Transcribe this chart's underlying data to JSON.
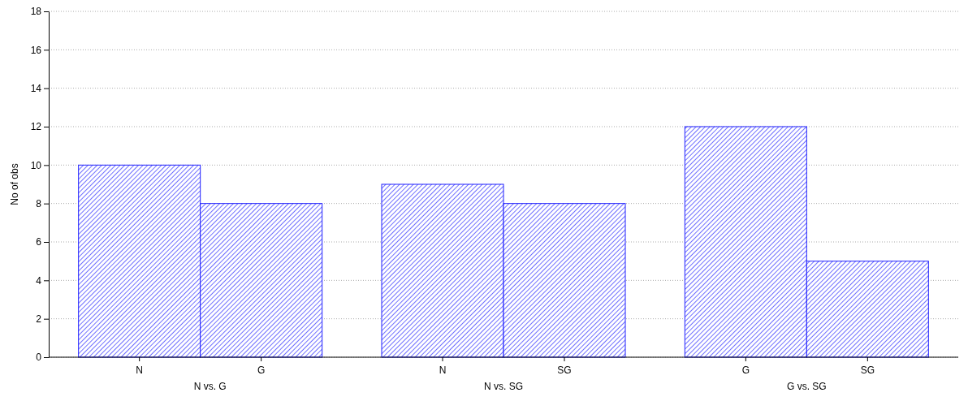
{
  "chart_data": {
    "type": "bar",
    "ylabel": "No of obs",
    "categories": [
      "N",
      "G",
      "N",
      "SG",
      "G",
      "SG"
    ],
    "values": [
      10,
      8,
      9,
      8,
      12,
      5
    ],
    "color": "#2020ff",
    "ylim": [
      0,
      18
    ],
    "yticks": [
      0,
      2,
      4,
      6,
      8,
      10,
      12,
      14,
      16,
      18
    ],
    "grid": "y",
    "annotations": [
      "N vs. G",
      "N vs. SG",
      "G vs. SG"
    ]
  }
}
